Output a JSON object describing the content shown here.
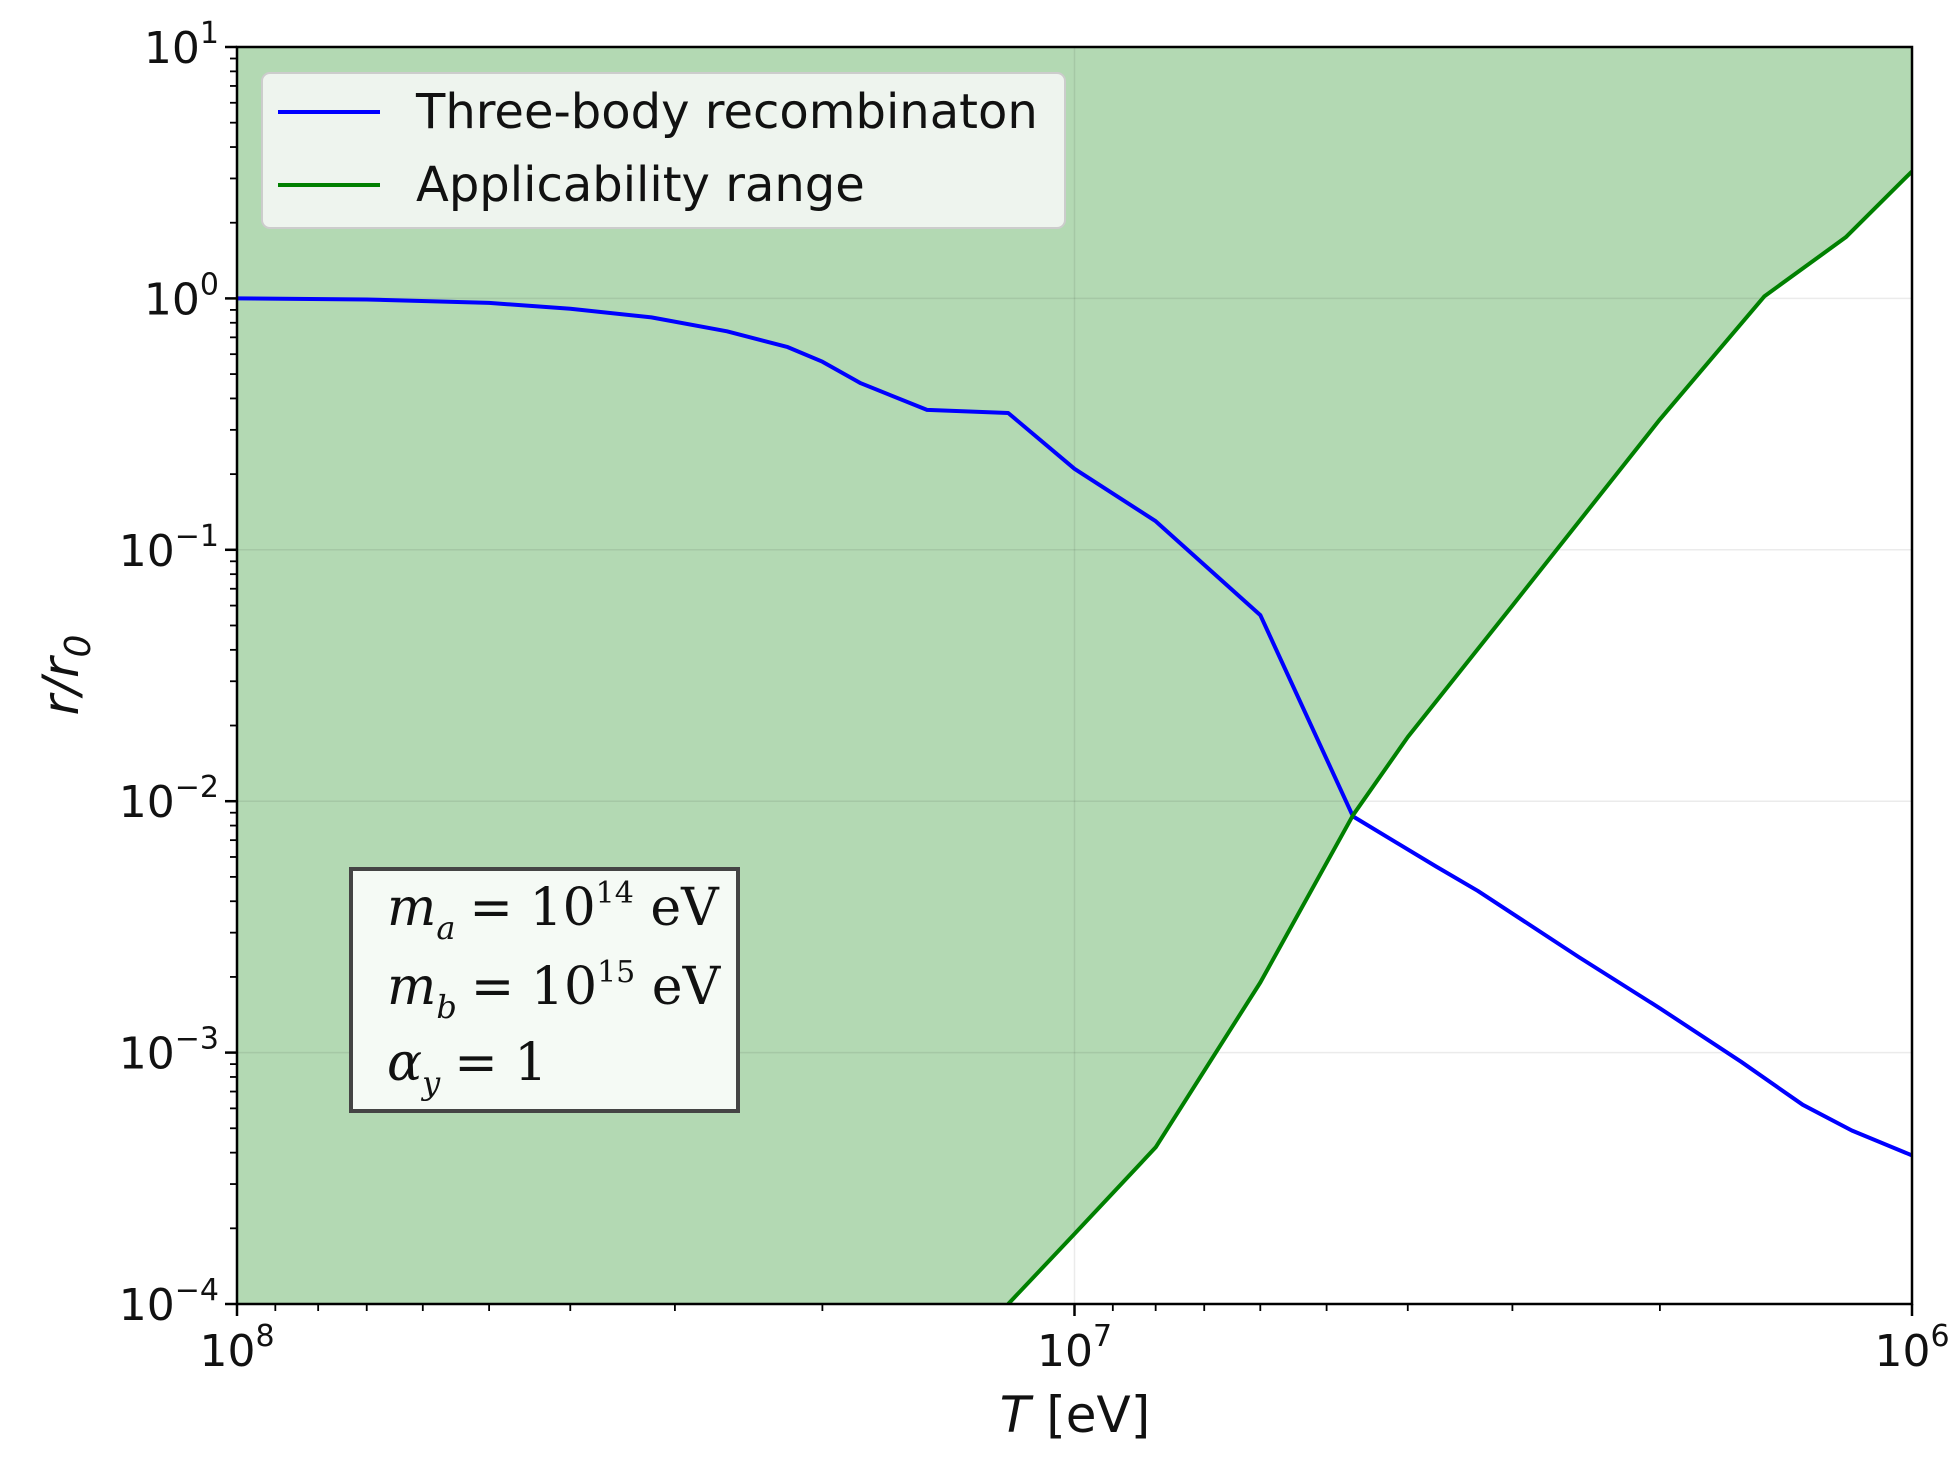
{
  "chart_data": {
    "type": "line",
    "xlabel_var": "T",
    "xlabel_unit": " [eV]",
    "ylabel": "r/r",
    "ylabel_sub": "0",
    "xscale": "log",
    "yscale": "log",
    "x_reversed": true,
    "xlim": [
      100000000,
      1000000
    ],
    "ylim": [
      0.0001,
      10
    ],
    "x_ticks": [
      {
        "value": 100000000,
        "base": "10",
        "exp": "8"
      },
      {
        "value": 10000000,
        "base": "10",
        "exp": "7"
      },
      {
        "value": 1000000,
        "base": "10",
        "exp": "6"
      }
    ],
    "y_ticks": [
      {
        "value": 10,
        "base": "10",
        "exp": "1"
      },
      {
        "value": 1,
        "base": "10",
        "exp": "0"
      },
      {
        "value": 0.1,
        "base": "10",
        "exp": "−1"
      },
      {
        "value": 0.01,
        "base": "10",
        "exp": "−2"
      },
      {
        "value": 0.001,
        "base": "10",
        "exp": "−3"
      },
      {
        "value": 0.0001,
        "base": "10",
        "exp": "−4"
      }
    ],
    "grid": true,
    "legend_position": "top-left",
    "series": [
      {
        "name": "Three-body recombinaton",
        "color": "#0000ff",
        "x": [
          100000000,
          70000000,
          50000000,
          40000000,
          32000000,
          26000000,
          22000000,
          20000000,
          18000000,
          15000000,
          12000000,
          10000000,
          8000000,
          6000000,
          4650000,
          3700000,
          3300000,
          2500000,
          2000000,
          1600000,
          1350000,
          1180000,
          1000000
        ],
        "y": [
          1.0,
          0.99,
          0.96,
          0.91,
          0.84,
          0.74,
          0.64,
          0.56,
          0.46,
          0.36,
          0.35,
          0.21,
          0.13,
          0.055,
          0.0087,
          0.0055,
          0.0044,
          0.0024,
          0.0015,
          0.00092,
          0.00062,
          0.00049,
          0.00039
        ]
      },
      {
        "name": "Applicability range",
        "color": "#008000",
        "x": [
          12000000,
          10000000,
          8000000,
          6000000,
          4650000,
          4000000,
          3000000,
          2000000,
          1500000,
          1200000,
          1000000
        ],
        "y": [
          0.0001,
          0.00019,
          0.00042,
          0.0019,
          0.0088,
          0.018,
          0.06,
          0.33,
          1.02,
          1.75,
          3.2
        ]
      }
    ],
    "fill_color": "#b3d9b3",
    "param_box": [
      {
        "var": "m",
        "sub": "a",
        "rhs_base": "= 10",
        "rhs_exp": "14",
        "rhs_unit": " eV"
      },
      {
        "var": "m",
        "sub": "b",
        "rhs_base": "= 10",
        "rhs_exp": "15",
        "rhs_unit": " eV"
      },
      {
        "var": "α",
        "sub": "y",
        "rhs_base": "= 1",
        "rhs_exp": "",
        "rhs_unit": ""
      }
    ]
  }
}
